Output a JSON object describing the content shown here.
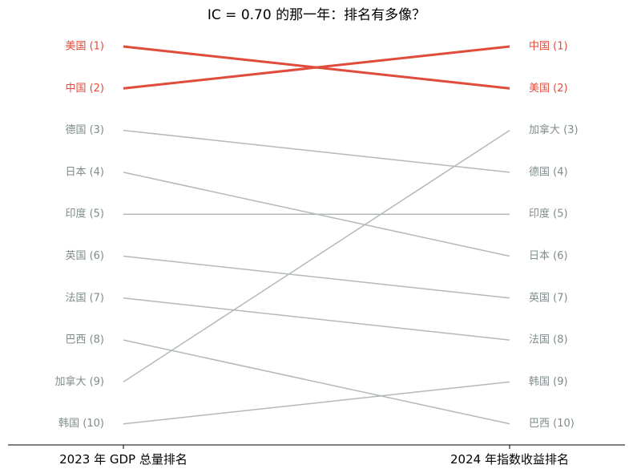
{
  "chart_data": {
    "type": "slope",
    "title": "IC = 0.70 的那一年：排名有多像？",
    "left_axis_label": "2023 年 GDP 总量排名",
    "right_axis_label": "2024 年指数收益排名",
    "highlight_color": "#e04c3c",
    "muted_color": "#b3b9b9",
    "muted_text_color": "#7f8c8d",
    "grid": false,
    "legend": "none",
    "rank_range": [
      1,
      10
    ],
    "series": [
      {
        "left_label": "美国 (1)",
        "right_label": "美国 (2)",
        "left_rank": 1,
        "right_rank": 2,
        "highlight": true
      },
      {
        "left_label": "中国 (2)",
        "right_label": "中国 (1)",
        "left_rank": 2,
        "right_rank": 1,
        "highlight": true
      },
      {
        "left_label": "德国 (3)",
        "right_label": "德国 (4)",
        "left_rank": 3,
        "right_rank": 4,
        "highlight": false
      },
      {
        "left_label": "日本 (4)",
        "right_label": "日本 (6)",
        "left_rank": 4,
        "right_rank": 6,
        "highlight": false
      },
      {
        "left_label": "印度 (5)",
        "right_label": "印度 (5)",
        "left_rank": 5,
        "right_rank": 5,
        "highlight": false
      },
      {
        "left_label": "英国 (6)",
        "right_label": "英国 (7)",
        "left_rank": 6,
        "right_rank": 7,
        "highlight": false
      },
      {
        "left_label": "法国 (7)",
        "right_label": "法国 (8)",
        "left_rank": 7,
        "right_rank": 8,
        "highlight": false
      },
      {
        "left_label": "巴西 (8)",
        "right_label": "巴西 (10)",
        "left_rank": 8,
        "right_rank": 10,
        "highlight": false
      },
      {
        "left_label": "加拿大 (9)",
        "right_label": "加拿大 (3)",
        "left_rank": 9,
        "right_rank": 3,
        "highlight": false
      },
      {
        "left_label": "韩国 (10)",
        "right_label": "韩国 (9)",
        "left_rank": 10,
        "right_rank": 9,
        "highlight": false
      }
    ]
  }
}
